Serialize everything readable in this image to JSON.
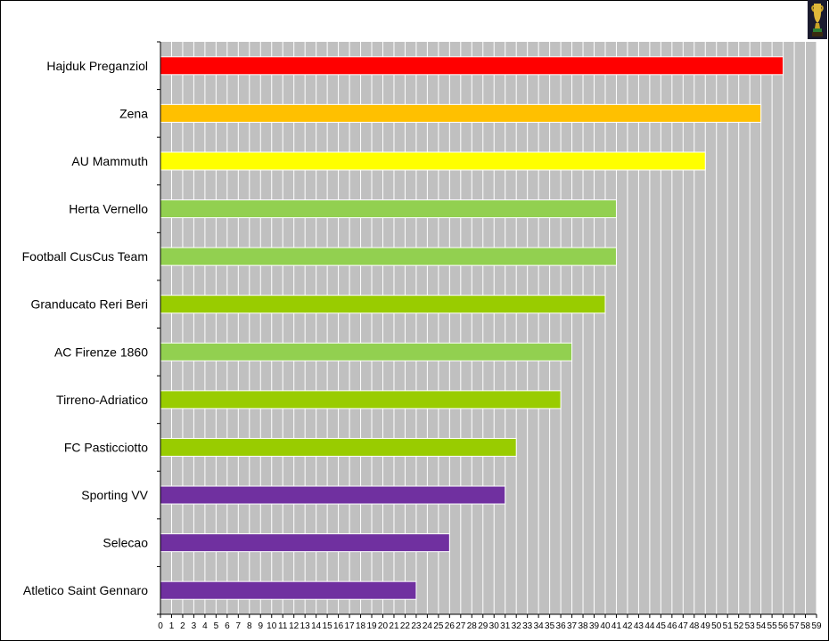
{
  "chart_data": {
    "type": "bar",
    "orientation": "horizontal",
    "categories": [
      "Hajduk Preganziol",
      "Zena",
      "AU Mammuth",
      "Herta Vernello",
      "Football CusCus Team",
      "Granducato Reri Beri",
      "AC Firenze 1860",
      "Tirreno-Adriatico",
      "FC Pasticciotto",
      "Sporting VV",
      "Selecao",
      "Atletico Saint Gennaro"
    ],
    "values": [
      56,
      54,
      49,
      41,
      41,
      40,
      37,
      36,
      32,
      31,
      26,
      23
    ],
    "bar_colors": [
      "#ff0000",
      "#ffc000",
      "#ffff00",
      "#92d050",
      "#92d050",
      "#99cc00",
      "#92d050",
      "#99cc00",
      "#99cc00",
      "#7030a0",
      "#7030a0",
      "#7030a0"
    ],
    "xlim": [
      0,
      59
    ],
    "xticks": [
      "0",
      "1",
      "2",
      "3",
      "4",
      "5",
      "6",
      "7",
      "8",
      "9",
      "10",
      "11",
      "12",
      "13",
      "14",
      "15",
      "16",
      "17",
      "18",
      "19",
      "20",
      "21",
      "22",
      "23",
      "24",
      "25",
      "26",
      "27",
      "28",
      "29",
      "30",
      "31",
      "32",
      "33",
      "34",
      "35",
      "36",
      "37",
      "38",
      "39",
      "40",
      "41",
      "42",
      "43",
      "44",
      "45",
      "46",
      "47",
      "48",
      "49",
      "50",
      "51",
      "52",
      "53",
      "54",
      "55",
      "56",
      "57",
      "58",
      "59"
    ],
    "grid": true,
    "plot_background": "#c0c0c0",
    "grid_color": "#ffffff",
    "title": "",
    "xlabel": "",
    "ylabel": ""
  },
  "decoration": {
    "icon": "trophy-icon"
  }
}
